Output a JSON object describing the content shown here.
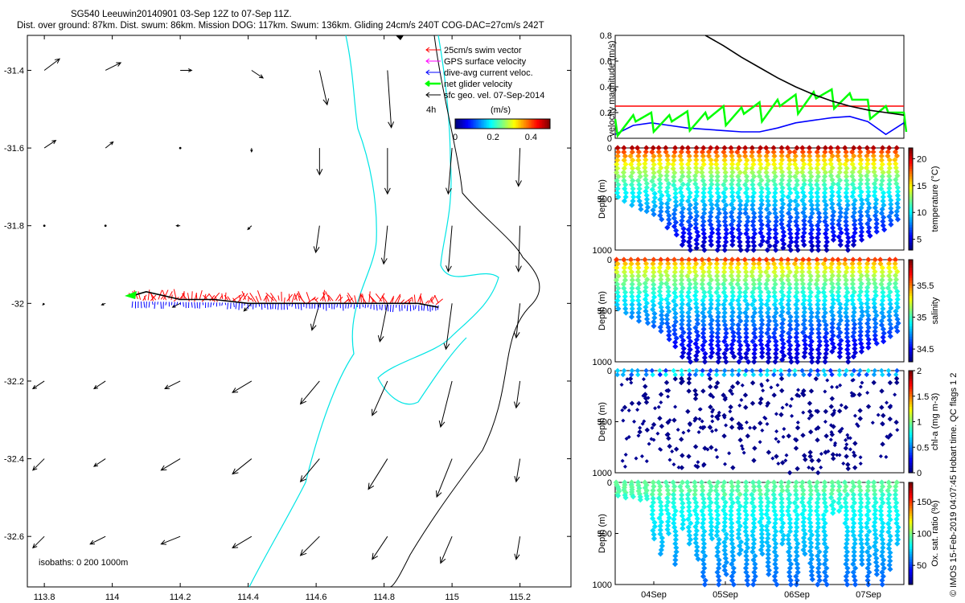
{
  "header": {
    "title": "SG540 Leeuwin20140901 03-Sep 12Z to 07-Sep 11Z.",
    "subtitle": "Dist. over ground: 87km. Dist. swum: 86km. Mission DOG: 117km. Swum: 136km. Gliding 24cm/s 240T COG-DAC=27cm/s 242T"
  },
  "footer": {
    "credit": "© IMOS 15-Feb-2019 04:07:45 Hobart time. QC flags 1  2"
  },
  "colors": {
    "swim_vector": "#ff0000",
    "gps_velocity": "#ff00ff",
    "dive_avg_current": "#0000ff",
    "net_velocity": "#00ff00",
    "geo_velocity": "#000000",
    "isobath": "#00e5e5",
    "coast": "#000000"
  },
  "chart_data": [
    {
      "type": "scatter",
      "panel": "map",
      "xlabel": "",
      "ylabel": "",
      "x_ticks": [
        "113.8",
        "114",
        "114.2",
        "114.4",
        "114.6",
        "114.8",
        "115",
        "115.2"
      ],
      "y_ticks": [
        "-31.4",
        "-31.6",
        "-31.8",
        "-32",
        "-32.2",
        "-32.4",
        "-32.6"
      ],
      "xlim": [
        113.75,
        115.35
      ],
      "ylim": [
        -32.73,
        -31.31
      ],
      "legend": {
        "placement": "top-right",
        "entries": [
          "25cm/s swim vector",
          "GPS surface velocity",
          "dive-avg current veloc.",
          "net glider velocity",
          "sfc geo. vel. 07-Sep-2014"
        ]
      },
      "colorbar": {
        "label": "(m/s)",
        "time_label": "4h",
        "ticks": [
          "0",
          "0.2",
          "0.4"
        ],
        "range": [
          0,
          0.5
        ]
      },
      "isobath_note": "isobaths: 0   200  1000m",
      "track": {
        "lon": [
          114.06,
          114.1,
          114.2,
          114.3,
          114.4,
          114.5,
          114.6,
          114.7,
          114.8,
          114.9,
          114.96
        ],
        "lat": [
          -31.98,
          -31.97,
          -31.99,
          -31.99,
          -32.0,
          -32.0,
          -32.0,
          -32.0,
          -32.0,
          -32.0,
          -32.01
        ]
      },
      "geo_vectors": [
        [
          113.8,
          -31.4,
          0.2,
          0.15
        ],
        [
          113.98,
          -31.4,
          0.2,
          0.1
        ],
        [
          114.2,
          -31.4,
          0.15,
          0.0
        ],
        [
          114.41,
          -31.4,
          0.15,
          -0.1
        ],
        [
          114.61,
          -31.4,
          0.1,
          -0.45
        ],
        [
          114.81,
          -31.4,
          0.05,
          -0.75
        ],
        [
          113.8,
          -31.6,
          0.15,
          0.1
        ],
        [
          113.98,
          -31.6,
          0.1,
          0.08
        ],
        [
          114.2,
          -31.6,
          0.0,
          0.0
        ],
        [
          114.41,
          -31.6,
          0.0,
          -0.05
        ],
        [
          114.61,
          -31.6,
          0.0,
          -0.35
        ],
        [
          114.81,
          -31.6,
          0.0,
          -0.6
        ],
        [
          115.0,
          -31.6,
          -0.05,
          -0.6
        ],
        [
          115.2,
          -31.6,
          -0.02,
          -0.5
        ],
        [
          113.8,
          -31.8,
          0.0,
          0.0
        ],
        [
          113.98,
          -31.8,
          0.0,
          0.0
        ],
        [
          114.2,
          -31.8,
          -0.05,
          0.0
        ],
        [
          114.41,
          -31.8,
          -0.05,
          -0.05
        ],
        [
          114.61,
          -31.8,
          -0.05,
          -0.35
        ],
        [
          114.81,
          -31.8,
          -0.05,
          -0.5
        ],
        [
          115.0,
          -31.8,
          -0.05,
          -0.6
        ],
        [
          115.2,
          -31.8,
          -0.02,
          -0.6
        ],
        [
          113.8,
          -32.0,
          -0.02,
          -0.02
        ],
        [
          113.98,
          -32.0,
          -0.05,
          -0.02
        ],
        [
          114.2,
          -32.0,
          -0.1,
          -0.05
        ],
        [
          114.41,
          -32.0,
          -0.1,
          -0.1
        ],
        [
          114.61,
          -32.0,
          -0.1,
          -0.35
        ],
        [
          114.81,
          -32.0,
          -0.1,
          -0.5
        ],
        [
          115.0,
          -32.0,
          -0.08,
          -0.6
        ],
        [
          115.2,
          -32.0,
          -0.05,
          -0.45
        ],
        [
          113.8,
          -32.2,
          -0.15,
          -0.1
        ],
        [
          113.98,
          -32.2,
          -0.15,
          -0.1
        ],
        [
          114.2,
          -32.2,
          -0.2,
          -0.1
        ],
        [
          114.41,
          -32.2,
          -0.25,
          -0.15
        ],
        [
          114.61,
          -32.2,
          -0.25,
          -0.3
        ],
        [
          114.81,
          -32.2,
          -0.2,
          -0.45
        ],
        [
          115.0,
          -32.2,
          -0.15,
          -0.6
        ],
        [
          115.2,
          -32.2,
          -0.05,
          -0.35
        ],
        [
          113.8,
          -32.4,
          -0.15,
          -0.15
        ],
        [
          113.98,
          -32.4,
          -0.15,
          -0.1
        ],
        [
          114.2,
          -32.4,
          -0.25,
          -0.15
        ],
        [
          114.41,
          -32.4,
          -0.25,
          -0.2
        ],
        [
          114.61,
          -32.4,
          -0.25,
          -0.3
        ],
        [
          114.81,
          -32.4,
          -0.25,
          -0.4
        ],
        [
          115.0,
          -32.4,
          -0.2,
          -0.5
        ],
        [
          115.2,
          -32.4,
          -0.05,
          -0.3
        ],
        [
          113.8,
          -32.6,
          -0.15,
          -0.15
        ],
        [
          113.98,
          -32.6,
          -0.2,
          -0.1
        ],
        [
          114.2,
          -32.6,
          -0.25,
          -0.1
        ],
        [
          114.41,
          -32.6,
          -0.25,
          -0.15
        ],
        [
          114.61,
          -32.6,
          -0.25,
          -0.25
        ],
        [
          114.81,
          -32.6,
          -0.2,
          -0.3
        ],
        [
          115.0,
          -32.6,
          -0.15,
          -0.35
        ],
        [
          115.2,
          -32.6,
          -0.05,
          -0.3
        ]
      ]
    },
    {
      "type": "line",
      "panel": "velocity",
      "ylabel": "velocity magnitude (m/s)",
      "ylim": [
        0,
        0.8
      ],
      "y_ticks": [
        "0",
        "0.2",
        "0.4",
        "0.6",
        "0.8"
      ],
      "x": [
        "03-Sep 12:00",
        "03-Sep 18:00",
        "04-Sep 00:00",
        "04-Sep 06:00",
        "04-Sep 12:00",
        "04-Sep 18:00",
        "05-Sep 00:00",
        "05-Sep 06:00",
        "05-Sep 12:00",
        "05-Sep 18:00",
        "06-Sep 00:00",
        "06-Sep 06:00",
        "06-Sep 12:00",
        "06-Sep 18:00",
        "07-Sep 00:00",
        "07-Sep 06:00",
        "07-Sep 11:00"
      ],
      "series": [
        {
          "name": "25cm/s swim vector",
          "color": "#ff0000",
          "values": [
            0.25,
            0.25,
            0.25,
            0.25,
            0.25,
            0.25,
            0.25,
            0.25,
            0.25,
            0.25,
            0.25,
            0.25,
            0.25,
            0.25,
            0.25,
            0.25,
            0.25
          ]
        },
        {
          "name": "dive-avg current veloc.",
          "color": "#0000ff",
          "values": [
            0.03,
            0.1,
            0.12,
            0.1,
            0.08,
            0.07,
            0.06,
            0.05,
            0.05,
            0.08,
            0.12,
            0.14,
            0.16,
            0.17,
            0.13,
            0.03,
            0.12
          ]
        },
        {
          "name": "net glider velocity",
          "color": "#00ff00",
          "values": [
            0.15,
            0.18,
            0.2,
            0.18,
            0.21,
            0.2,
            0.25,
            0.24,
            0.28,
            0.3,
            0.34,
            0.36,
            0.38,
            0.35,
            0.3,
            0.25,
            0.2
          ]
        },
        {
          "name": "sfc geo. vel. 07-Sep-2014",
          "color": "#000000",
          "values": [
            null,
            null,
            null,
            null,
            null,
            0.8,
            0.72,
            0.63,
            0.55,
            0.47,
            0.4,
            0.34,
            0.29,
            0.25,
            0.22,
            0.2,
            0.18
          ]
        }
      ]
    },
    {
      "type": "scatter",
      "panel": "profile",
      "variable": "temperature",
      "ylabel": "Depth (m)",
      "colorbar_label": "temperature (°C)",
      "colorbar_ticks": [
        "5",
        "10",
        "15",
        "20"
      ],
      "crange": [
        3,
        22
      ],
      "ylim": [
        1000,
        0
      ],
      "y_ticks": [
        "0",
        "500",
        "1000"
      ],
      "surface_value": 21,
      "deep_value": 4,
      "profile_depths": [
        480,
        520,
        560,
        600,
        620,
        650,
        700,
        780,
        850,
        950,
        1000,
        980,
        1000,
        950,
        1000,
        1000,
        950,
        1000,
        1000,
        1000,
        950,
        1000,
        1000,
        980,
        1000,
        1000,
        950,
        1000,
        1000,
        1000,
        900,
        950,
        1000,
        950,
        900,
        860,
        820,
        800,
        750,
        700
      ]
    },
    {
      "type": "scatter",
      "panel": "profile",
      "variable": "salinity",
      "ylabel": "Depth (m)",
      "colorbar_label": "salinity",
      "colorbar_ticks": [
        "34.5",
        "35",
        "35.5"
      ],
      "crange": [
        34.3,
        35.9
      ],
      "ylim": [
        1000,
        0
      ],
      "y_ticks": [
        "0",
        "500",
        "1000"
      ],
      "surface_value": 35.6,
      "deep_value": 34.4,
      "profile_depths": [
        480,
        520,
        560,
        600,
        620,
        650,
        700,
        780,
        850,
        950,
        1000,
        980,
        1000,
        950,
        1000,
        1000,
        950,
        1000,
        1000,
        1000,
        950,
        1000,
        1000,
        980,
        1000,
        1000,
        950,
        1000,
        1000,
        1000,
        900,
        950,
        1000,
        950,
        900,
        860,
        820,
        800,
        750,
        700
      ]
    },
    {
      "type": "scatter",
      "panel": "profile",
      "variable": "chl-a",
      "ylabel": "Depth (m)",
      "colorbar_label": "chl-a (mg m-3)",
      "colorbar_ticks": [
        "0",
        "0.5",
        "1",
        "1.5",
        "2"
      ],
      "crange": [
        0,
        2
      ],
      "ylim": [
        1000,
        0
      ],
      "y_ticks": [
        "0",
        "500",
        "1000"
      ],
      "surface_value": 0.6,
      "deep_value": 0.0,
      "profile_depths": [
        480,
        520,
        560,
        600,
        620,
        650,
        700,
        780,
        850,
        950,
        1000,
        980,
        1000,
        950,
        1000,
        1000,
        950,
        1000,
        1000,
        1000,
        950,
        1000,
        1000,
        980,
        1000,
        1000,
        950,
        1000,
        1000,
        1000,
        900,
        950,
        1000,
        950,
        900,
        860,
        820,
        800,
        750,
        700
      ]
    },
    {
      "type": "scatter",
      "panel": "profile",
      "variable": "oxygen",
      "ylabel": "Depth (m)",
      "colorbar_label": "Ox. sat. ratio (%)",
      "colorbar_ticks": [
        "50",
        "100",
        "150"
      ],
      "crange": [
        20,
        180
      ],
      "ylim": [
        1000,
        0
      ],
      "y_ticks": [
        "0",
        "500",
        "1000"
      ],
      "x_ticks": [
        "04Sep",
        "05Sep",
        "06Sep",
        "07Sep"
      ],
      "surface_value": 92,
      "deep_value": 55,
      "profile_depths": [
        130,
        150,
        140,
        170,
        160,
        550,
        700,
        500,
        800,
        450,
        600,
        750,
        1000,
        550,
        1000,
        900,
        1000,
        700,
        1000,
        1000,
        700,
        900,
        1000,
        600,
        1000,
        1000,
        700,
        950,
        1000,
        1000,
        300,
        280,
        1000,
        1000,
        800,
        1000,
        900,
        1000,
        850,
        600
      ]
    }
  ]
}
